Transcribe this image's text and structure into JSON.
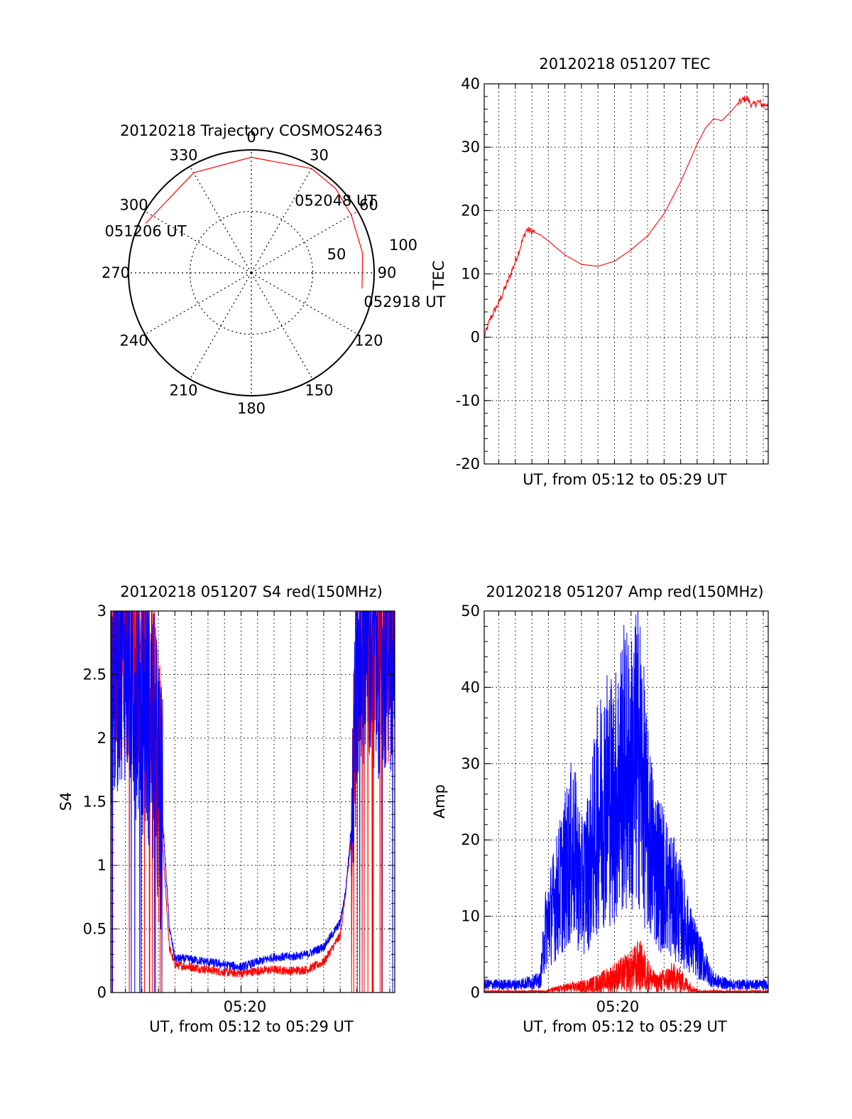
{
  "colors": {
    "red": "#ff0000",
    "blue": "#0000ff",
    "axis": "#000000",
    "grid": "#000000"
  },
  "chart_data": [
    {
      "id": "trajectory",
      "type": "polar",
      "title": "20120218 Trajectory COSMOS2463",
      "azimuth_labels": [
        "0",
        "30",
        "60",
        "90",
        "120",
        "150",
        "180",
        "210",
        "240",
        "270",
        "300",
        "330"
      ],
      "radial_tick_labels": [
        "50",
        "100"
      ],
      "elevation_rings": [
        50,
        100
      ],
      "grid": true,
      "track": {
        "color": "#ff0000",
        "points": [
          [
            -65,
            95
          ],
          [
            -30,
            94
          ],
          [
            0,
            94
          ],
          [
            30,
            98
          ],
          [
            45,
            97
          ],
          [
            60,
            94
          ],
          [
            80,
            92
          ],
          [
            98,
            91
          ]
        ]
      },
      "annotations": [
        {
          "text": "051206 UT",
          "azimuth": -65,
          "r": 95
        },
        {
          "text": "052048 UT",
          "azimuth": 45,
          "r": 97
        },
        {
          "text": "052918 UT",
          "azimuth": 98,
          "r": 91
        }
      ]
    },
    {
      "id": "tec",
      "type": "line",
      "title": "20120218 051207 TEC",
      "xlabel": "UT, from 05:12 to 05:29 UT",
      "ylabel": "TEC",
      "ylim": [
        -20,
        40
      ],
      "yticks": [
        "40",
        "30",
        "20",
        "10",
        "0",
        "-10",
        "-20"
      ],
      "xlim": [
        "05:12:07",
        "05:29:18"
      ],
      "grid": true,
      "series": [
        {
          "color": "#ff0000",
          "x": [
            "05:12:07",
            "05:12:30",
            "05:13:00",
            "05:13:30",
            "05:14:00",
            "05:14:20",
            "05:14:40",
            "05:15:00",
            "05:15:30",
            "05:16:00",
            "05:17:00",
            "05:18:00",
            "05:19:00",
            "05:20:00",
            "05:21:00",
            "05:22:00",
            "05:23:00",
            "05:24:00",
            "05:24:30",
            "05:25:00",
            "05:25:30",
            "05:26:00",
            "05:26:30",
            "05:27:00",
            "05:27:30",
            "05:28:00",
            "05:28:20",
            "05:28:40",
            "05:29:00",
            "05:29:18"
          ],
          "y": [
            0,
            3,
            5.5,
            8.5,
            12,
            14.5,
            17,
            16.7,
            16.2,
            15.2,
            13,
            11.5,
            11.2,
            12,
            13.8,
            16,
            19.5,
            24.5,
            27.5,
            30.5,
            33,
            34.5,
            34.2,
            35.5,
            37,
            37.8,
            36.5,
            37.2,
            36.6,
            37
          ]
        }
      ]
    },
    {
      "id": "s4",
      "type": "line",
      "title": "20120218 051207 S4 red(150MHz)",
      "xlabel": "UT, from 05:12 to 05:29 UT",
      "ylabel": "S4",
      "ylim": [
        0,
        3
      ],
      "yticks": [
        "3",
        "2.5",
        "2",
        "1.5",
        "1",
        "0.5",
        "0"
      ],
      "xtick_label": "05:20",
      "xlim": [
        "05:12:07",
        "05:29:18"
      ],
      "grid": true,
      "series": [
        {
          "color": "#0000ff",
          "x": [
            "05:12:07",
            "05:12:50",
            "05:13:30",
            "05:14:30",
            "05:15:20",
            "05:15:40",
            "05:16:00",
            "05:17:00",
            "05:18:00",
            "05:19:00",
            "05:20:00",
            "05:21:00",
            "05:22:00",
            "05:23:00",
            "05:24:00",
            "05:25:00",
            "05:26:00",
            "05:26:20",
            "05:26:40",
            "05:27:00",
            "05:27:20",
            "05:28:00",
            "05:29:18"
          ],
          "y": [
            2.4,
            2.8,
            2.5,
            2.2,
            1.2,
            0.5,
            0.27,
            0.26,
            0.24,
            0.22,
            0.2,
            0.24,
            0.28,
            0.28,
            0.3,
            0.36,
            0.55,
            0.8,
            1.3,
            2.6,
            2.9,
            2.8,
            2.7
          ]
        },
        {
          "color": "#ff0000",
          "x": [
            "05:12:07",
            "05:12:50",
            "05:13:30",
            "05:14:30",
            "05:15:20",
            "05:15:40",
            "05:16:00",
            "05:17:00",
            "05:18:00",
            "05:19:00",
            "05:20:00",
            "05:21:00",
            "05:22:00",
            "05:23:00",
            "05:24:00",
            "05:25:00",
            "05:26:00",
            "05:26:20",
            "05:26:40",
            "05:27:00",
            "05:27:20",
            "05:28:00",
            "05:29:18"
          ],
          "y": [
            2.7,
            2.9,
            2.8,
            2.7,
            1.0,
            0.35,
            0.22,
            0.2,
            0.18,
            0.16,
            0.15,
            0.17,
            0.18,
            0.17,
            0.18,
            0.24,
            0.45,
            0.8,
            1.2,
            2.7,
            2.9,
            2.8,
            2.9
          ]
        }
      ]
    },
    {
      "id": "amp",
      "type": "line",
      "title": "20120218 051207 Amp red(150MHz)",
      "xlabel": "UT, from 05:12 to 05:29 UT",
      "ylabel": "Amp",
      "ylim": [
        0,
        50
      ],
      "yticks": [
        "50",
        "40",
        "30",
        "20",
        "10",
        "0"
      ],
      "xtick_label": "05:20",
      "xlim": [
        "05:12:07",
        "05:29:18"
      ],
      "grid": true,
      "series": [
        {
          "color": "#0000ff",
          "x": [
            "05:12:07",
            "05:14:00",
            "05:15:30",
            "05:15:50",
            "05:16:30",
            "05:17:00",
            "05:17:30",
            "05:18:00",
            "05:18:30",
            "05:19:00",
            "05:19:30",
            "05:20:00",
            "05:20:30",
            "05:21:00",
            "05:21:30",
            "05:22:00",
            "05:22:30",
            "05:23:00",
            "05:23:30",
            "05:24:00",
            "05:24:30",
            "05:25:00",
            "05:26:00",
            "05:27:00",
            "05:29:18"
          ],
          "y": [
            1,
            1,
            1.5,
            8,
            12,
            15,
            18,
            13,
            16,
            22,
            25,
            24,
            28,
            27,
            30,
            20,
            16,
            14,
            12,
            10,
            7,
            5,
            1.5,
            1,
            1
          ]
        },
        {
          "color": "#ff0000",
          "x": [
            "05:12:07",
            "05:15:30",
            "05:16:00",
            "05:17:00",
            "05:18:00",
            "05:19:00",
            "05:19:30",
            "05:20:00",
            "05:20:30",
            "05:21:00",
            "05:21:30",
            "05:22:00",
            "05:22:30",
            "05:23:00",
            "05:23:30",
            "05:24:00",
            "05:24:30",
            "05:25:00",
            "05:26:00",
            "05:29:18"
          ],
          "y": [
            0,
            0,
            0.6,
            1.5,
            2,
            3,
            4,
            5,
            6,
            7,
            9,
            6,
            3,
            4,
            5,
            4,
            2,
            0.5,
            0,
            0
          ]
        }
      ]
    }
  ]
}
